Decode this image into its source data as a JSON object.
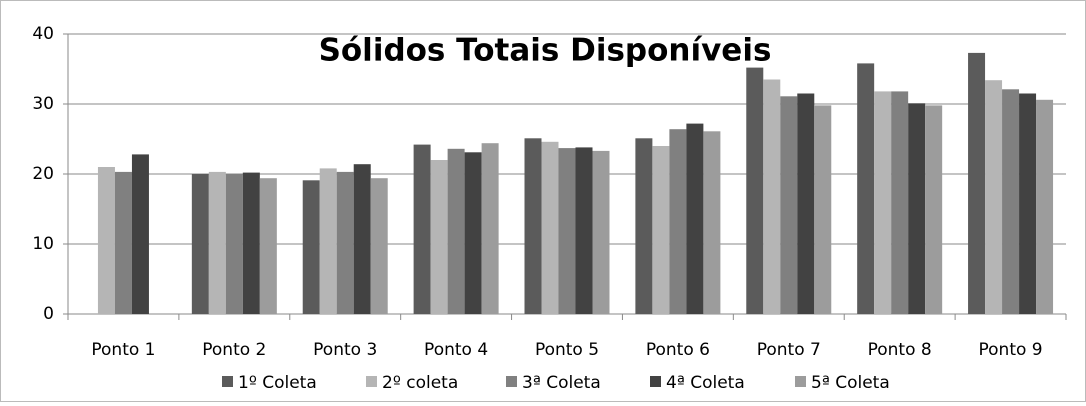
{
  "chart_data": {
    "type": "bar",
    "title": "Sólidos Totais Disponíveis",
    "categories": [
      "Ponto 1",
      "Ponto 2",
      "Ponto 3",
      "Ponto 4",
      "Ponto 5",
      "Ponto 6",
      "Ponto 7",
      "Ponto 8",
      "Ponto 9"
    ],
    "series": [
      {
        "name": "1º Coleta",
        "color": "#5b5b5b",
        "values": [
          null,
          20,
          19.1,
          24.2,
          25.1,
          25.1,
          35.2,
          35.8,
          37.3
        ]
      },
      {
        "name": "2º coleta",
        "color": "#b5b5b5",
        "values": [
          21,
          20.3,
          20.8,
          22,
          24.6,
          24,
          33.5,
          31.8,
          33.4
        ]
      },
      {
        "name": "3ª Coleta",
        "color": "#808080",
        "values": [
          20.3,
          20,
          20.3,
          23.6,
          23.7,
          26.4,
          31.1,
          31.8,
          32.1
        ]
      },
      {
        "name": "4ª Coleta",
        "color": "#424242",
        "values": [
          22.8,
          20.2,
          21.4,
          23.1,
          23.8,
          27.2,
          31.5,
          30.1,
          31.5
        ]
      },
      {
        "name": "5ª Coleta",
        "color": "#9c9c9c",
        "values": [
          null,
          19.4,
          19.4,
          24.4,
          23.3,
          26.1,
          29.8,
          29.8,
          30.6
        ]
      }
    ],
    "ylim": [
      0,
      40
    ],
    "yticks": [
      0,
      10,
      20,
      30,
      40
    ],
    "grid": true,
    "legend": "bottom"
  }
}
